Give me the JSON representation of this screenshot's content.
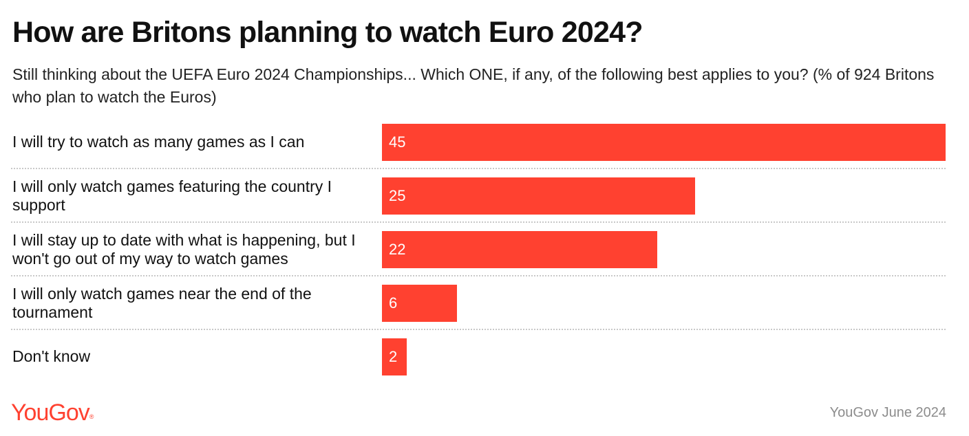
{
  "title": "How are Britons planning to watch Euro 2024?",
  "subtitle": "Still thinking about the UEFA Euro 2024 Championships... Which ONE, if any, of the following best applies to you? (% of 924 Britons who plan to watch the Euros)",
  "chart_data": {
    "type": "bar",
    "orientation": "horizontal",
    "categories": [
      "I will try to watch as many games as I can",
      "I will only watch games featuring the country I support",
      "I will stay up to date with what is happening, but I won't go out of my way to watch games",
      "I will only watch games near the end of the tournament",
      "Don't know"
    ],
    "values": [
      45,
      25,
      22,
      6,
      2
    ],
    "value_labels": [
      "45",
      "25",
      "22",
      "6",
      "2"
    ],
    "xlim": [
      0,
      45
    ],
    "bar_color": "#ff4130",
    "grid": false,
    "legend": "none",
    "title": "How are Britons planning to watch Euro 2024?",
    "subtitle": "Still thinking about the UEFA Euro 2024 Championships... Which ONE, if any, of the following best applies to you? (% of 924 Britons who plan to watch the Euros)",
    "xlabel": "",
    "ylabel": ""
  },
  "footer": {
    "logo_text": "YouGov",
    "logo_mark": "®",
    "source": "YouGov June 2024"
  },
  "colors": {
    "accent": "#ff4130",
    "source_text": "#8c8c8c"
  }
}
